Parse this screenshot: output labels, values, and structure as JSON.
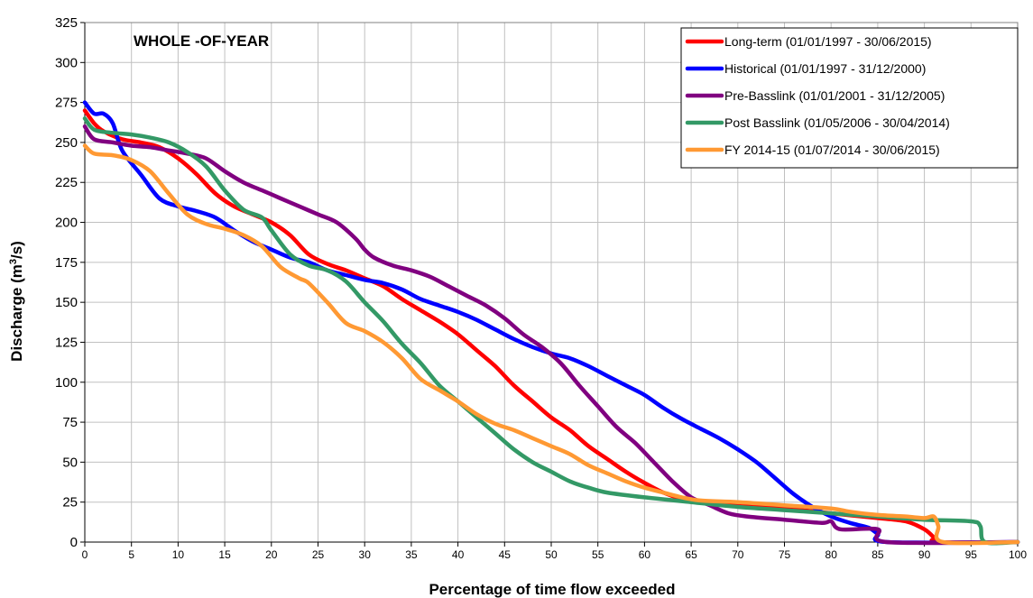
{
  "chart_data": {
    "type": "line",
    "title": "WHOLE -OF-YEAR",
    "xlabel": "Percentage of time flow exceeded",
    "ylabel": "Discharge (m³/s)",
    "ylabel_main": "Discharge (m",
    "ylabel_sup": "3",
    "ylabel_end": "/s)",
    "xlim": [
      0,
      100
    ],
    "ylim": [
      0,
      325
    ],
    "xticks": [
      0,
      5,
      10,
      15,
      20,
      25,
      30,
      35,
      40,
      45,
      50,
      55,
      60,
      65,
      70,
      75,
      80,
      85,
      90,
      95,
      100
    ],
    "yticks": [
      0,
      25,
      50,
      75,
      100,
      125,
      150,
      175,
      200,
      225,
      250,
      275,
      300,
      325
    ],
    "grid": true,
    "legend_position": "top-right",
    "series": [
      {
        "name": "Long-term (01/01/1997 - 30/06/2015)",
        "color": "#ff0000",
        "points": [
          [
            0,
            270
          ],
          [
            1,
            262
          ],
          [
            2,
            257
          ],
          [
            4,
            252
          ],
          [
            6,
            250
          ],
          [
            8,
            247
          ],
          [
            10,
            240
          ],
          [
            12,
            230
          ],
          [
            14,
            218
          ],
          [
            16,
            210
          ],
          [
            18,
            205
          ],
          [
            20,
            200
          ],
          [
            22,
            192
          ],
          [
            24,
            180
          ],
          [
            26,
            174
          ],
          [
            28,
            170
          ],
          [
            30,
            165
          ],
          [
            32,
            160
          ],
          [
            34,
            152
          ],
          [
            36,
            145
          ],
          [
            38,
            138
          ],
          [
            40,
            130
          ],
          [
            42,
            120
          ],
          [
            44,
            110
          ],
          [
            46,
            98
          ],
          [
            48,
            88
          ],
          [
            50,
            78
          ],
          [
            52,
            70
          ],
          [
            54,
            60
          ],
          [
            56,
            52
          ],
          [
            58,
            44
          ],
          [
            60,
            37
          ],
          [
            62,
            31
          ],
          [
            64,
            27
          ],
          [
            66,
            25
          ],
          [
            70,
            23
          ],
          [
            75,
            21
          ],
          [
            80,
            18
          ],
          [
            85,
            15
          ],
          [
            88,
            13
          ],
          [
            90,
            8
          ],
          [
            91,
            3
          ],
          [
            91.5,
            0
          ],
          [
            100,
            0
          ]
        ]
      },
      {
        "name": "Historical (01/01/1997 - 31/12/2000)",
        "color": "#0000ff",
        "points": [
          [
            0,
            275
          ],
          [
            1,
            268
          ],
          [
            2,
            268
          ],
          [
            3,
            262
          ],
          [
            4,
            245
          ],
          [
            6,
            230
          ],
          [
            8,
            215
          ],
          [
            10,
            210
          ],
          [
            12,
            207
          ],
          [
            14,
            203
          ],
          [
            16,
            195
          ],
          [
            18,
            188
          ],
          [
            20,
            183
          ],
          [
            22,
            178
          ],
          [
            24,
            175
          ],
          [
            26,
            170
          ],
          [
            28,
            167
          ],
          [
            30,
            164
          ],
          [
            32,
            162
          ],
          [
            34,
            158
          ],
          [
            36,
            152
          ],
          [
            38,
            148
          ],
          [
            40,
            144
          ],
          [
            42,
            139
          ],
          [
            44,
            133
          ],
          [
            46,
            127
          ],
          [
            48,
            122
          ],
          [
            50,
            118
          ],
          [
            52,
            115
          ],
          [
            54,
            110
          ],
          [
            56,
            104
          ],
          [
            58,
            98
          ],
          [
            60,
            92
          ],
          [
            62,
            84
          ],
          [
            64,
            77
          ],
          [
            66,
            71
          ],
          [
            68,
            65
          ],
          [
            70,
            58
          ],
          [
            72,
            50
          ],
          [
            74,
            40
          ],
          [
            76,
            30
          ],
          [
            78,
            22
          ],
          [
            80,
            16
          ],
          [
            82,
            12
          ],
          [
            84,
            9
          ],
          [
            85,
            5
          ],
          [
            86,
            0
          ],
          [
            100,
            0
          ]
        ]
      },
      {
        "name": "Pre-Basslink (01/01/2001 - 31/12/2005)",
        "color": "#800080",
        "points": [
          [
            0,
            260
          ],
          [
            1,
            252
          ],
          [
            3,
            250
          ],
          [
            5,
            248
          ],
          [
            7,
            247
          ],
          [
            9,
            245
          ],
          [
            11,
            243
          ],
          [
            13,
            240
          ],
          [
            15,
            232
          ],
          [
            17,
            225
          ],
          [
            19,
            220
          ],
          [
            21,
            215
          ],
          [
            23,
            210
          ],
          [
            25,
            205
          ],
          [
            27,
            200
          ],
          [
            29,
            190
          ],
          [
            30,
            183
          ],
          [
            31,
            178
          ],
          [
            33,
            173
          ],
          [
            35,
            170
          ],
          [
            37,
            166
          ],
          [
            39,
            160
          ],
          [
            41,
            154
          ],
          [
            43,
            148
          ],
          [
            45,
            140
          ],
          [
            47,
            130
          ],
          [
            49,
            122
          ],
          [
            51,
            112
          ],
          [
            53,
            98
          ],
          [
            55,
            85
          ],
          [
            57,
            72
          ],
          [
            59,
            62
          ],
          [
            61,
            50
          ],
          [
            63,
            38
          ],
          [
            65,
            28
          ],
          [
            67,
            23
          ],
          [
            69,
            18
          ],
          [
            71,
            16
          ],
          [
            75,
            14
          ],
          [
            79,
            12
          ],
          [
            80,
            13
          ],
          [
            81,
            8
          ],
          [
            85,
            8
          ],
          [
            86,
            0
          ],
          [
            100,
            0
          ]
        ]
      },
      {
        "name": "Post Basslink (01/05/2006 - 30/04/2014)",
        "color": "#339966",
        "points": [
          [
            0,
            265
          ],
          [
            1,
            258
          ],
          [
            3,
            256
          ],
          [
            5,
            255
          ],
          [
            7,
            253
          ],
          [
            9,
            250
          ],
          [
            11,
            244
          ],
          [
            13,
            235
          ],
          [
            15,
            220
          ],
          [
            17,
            208
          ],
          [
            19,
            203
          ],
          [
            20,
            195
          ],
          [
            22,
            180
          ],
          [
            24,
            173
          ],
          [
            26,
            170
          ],
          [
            28,
            163
          ],
          [
            30,
            150
          ],
          [
            32,
            138
          ],
          [
            34,
            124
          ],
          [
            36,
            112
          ],
          [
            38,
            98
          ],
          [
            40,
            88
          ],
          [
            42,
            78
          ],
          [
            44,
            68
          ],
          [
            46,
            58
          ],
          [
            48,
            50
          ],
          [
            50,
            44
          ],
          [
            52,
            38
          ],
          [
            54,
            34
          ],
          [
            56,
            31
          ],
          [
            60,
            28
          ],
          [
            65,
            25
          ],
          [
            70,
            22
          ],
          [
            75,
            20
          ],
          [
            80,
            18
          ],
          [
            85,
            16
          ],
          [
            90,
            14
          ],
          [
            95,
            13
          ],
          [
            96,
            10
          ],
          [
            96.5,
            0
          ],
          [
            100,
            0
          ]
        ]
      },
      {
        "name": "FY 2014-15 (01/07/2014 - 30/06/2015)",
        "color": "#ff9933",
        "points": [
          [
            0,
            248
          ],
          [
            1,
            243
          ],
          [
            3,
            242
          ],
          [
            5,
            239
          ],
          [
            7,
            232
          ],
          [
            9,
            218
          ],
          [
            11,
            205
          ],
          [
            13,
            199
          ],
          [
            15,
            196
          ],
          [
            17,
            192
          ],
          [
            19,
            185
          ],
          [
            21,
            172
          ],
          [
            23,
            165
          ],
          [
            24,
            162
          ],
          [
            26,
            150
          ],
          [
            28,
            137
          ],
          [
            30,
            132
          ],
          [
            32,
            125
          ],
          [
            34,
            115
          ],
          [
            36,
            102
          ],
          [
            38,
            95
          ],
          [
            40,
            88
          ],
          [
            42,
            80
          ],
          [
            44,
            74
          ],
          [
            46,
            70
          ],
          [
            48,
            65
          ],
          [
            50,
            60
          ],
          [
            52,
            55
          ],
          [
            54,
            48
          ],
          [
            56,
            43
          ],
          [
            58,
            38
          ],
          [
            60,
            34
          ],
          [
            62,
            31
          ],
          [
            64,
            28
          ],
          [
            66,
            26
          ],
          [
            70,
            25
          ],
          [
            75,
            23
          ],
          [
            80,
            21
          ],
          [
            82,
            19
          ],
          [
            85,
            17
          ],
          [
            88,
            16
          ],
          [
            90,
            15
          ],
          [
            91,
            16
          ],
          [
            91.5,
            10
          ],
          [
            92,
            0
          ],
          [
            100,
            0
          ]
        ]
      }
    ]
  }
}
